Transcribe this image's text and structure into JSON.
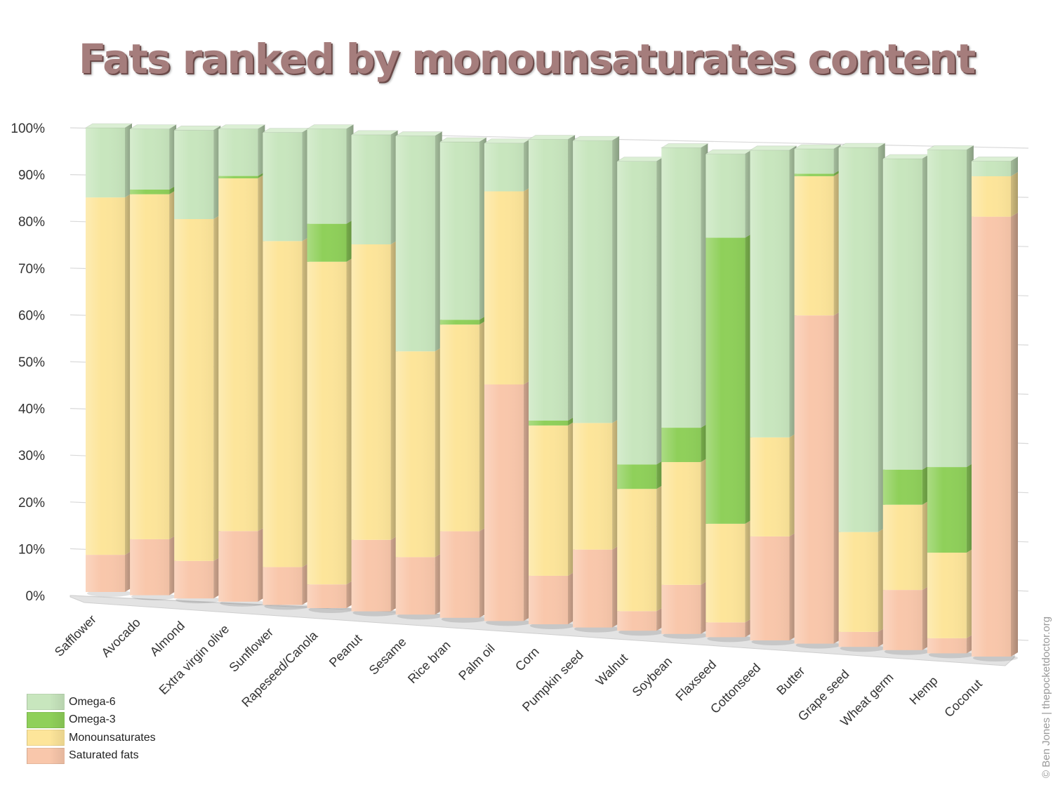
{
  "chart_data": {
    "type": "bar",
    "stacked": true,
    "title": "Fats ranked by monounsaturates content",
    "xlabel": "",
    "ylabel": "",
    "ylim": [
      0,
      100
    ],
    "y_ticks": [
      "0%",
      "10%",
      "20%",
      "30%",
      "40%",
      "50%",
      "60%",
      "70%",
      "80%",
      "90%",
      "100%"
    ],
    "grid": true,
    "legend_position": "bottom-left",
    "categories": [
      "Safflower",
      "Avocado",
      "Almond",
      "Extra virgin olive",
      "Sunflower",
      "Rapeseed/Canola",
      "Peanut",
      "Sesame",
      "Rice bran",
      "Palm oil",
      "Corn",
      "Pumpkin seed",
      "Walnut",
      "Soybean",
      "Flaxseed",
      "Cottonseed",
      "Butter",
      "Grape seed",
      "Wheat germ",
      "Hemp",
      "Coconut"
    ],
    "series": [
      {
        "name": "Saturated fats",
        "color": "#f9c7ab",
        "values": [
          8,
          12,
          8,
          15,
          8,
          5,
          15,
          12,
          18,
          49,
          10,
          16,
          4,
          10,
          3,
          21,
          66,
          3,
          12,
          3,
          87
        ]
      },
      {
        "name": "Monounsaturates",
        "color": "#fde59a",
        "values": [
          77,
          74,
          73,
          75,
          69,
          68,
          62,
          43,
          43,
          40,
          31,
          26,
          25,
          25,
          20,
          20,
          28,
          20,
          17,
          17,
          8
        ]
      },
      {
        "name": "Omega-3",
        "color": "#8fd05a",
        "values": [
          0,
          1,
          0,
          0.5,
          0,
          8,
          0,
          0,
          1,
          0,
          1,
          0,
          5,
          7,
          58,
          0,
          0.5,
          0,
          7,
          17,
          0
        ]
      },
      {
        "name": "Omega-6",
        "color": "#c8e6be",
        "values": [
          15,
          13,
          19,
          10,
          23,
          20,
          23,
          45,
          37,
          10,
          58,
          58,
          62,
          57,
          17,
          58,
          5,
          77,
          62,
          63,
          3
        ]
      }
    ],
    "legend_order": [
      "Omega-6",
      "Omega-3",
      "Monounsaturates",
      "Saturated fats"
    ]
  },
  "credit": "© Ben Jones | thepocketdoctor.org"
}
